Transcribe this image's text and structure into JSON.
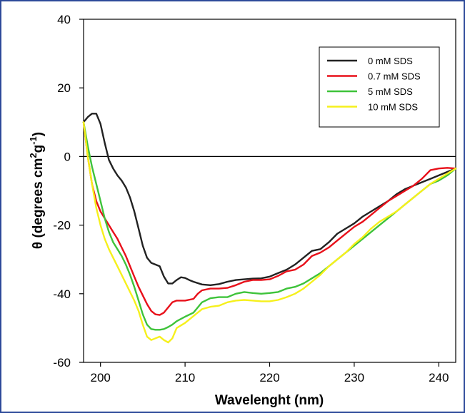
{
  "chart_data": {
    "type": "line",
    "title": "",
    "xlabel": "Wavelenght (nm)",
    "ylabel_parts": {
      "prefix": "θ (degrees cm",
      "sup1": "2",
      "mid": "g",
      "sup2": "-1",
      "suffix": ")"
    },
    "xlim": [
      198,
      242
    ],
    "ylim": [
      -60,
      40
    ],
    "xticks": [
      200,
      210,
      220,
      230,
      240
    ],
    "yticks": [
      -60,
      -40,
      -20,
      0,
      20,
      40
    ],
    "zero_line": true,
    "grid": false,
    "legend_position": "top-right",
    "series": [
      {
        "name": "0 mM SDS",
        "color": "#222222",
        "points": [
          [
            198,
            10
          ],
          [
            198.5,
            11.5
          ],
          [
            199,
            12.5
          ],
          [
            199.5,
            12.5
          ],
          [
            200,
            9.5
          ],
          [
            200.5,
            4
          ],
          [
            201,
            -1
          ],
          [
            201.5,
            -3.5
          ],
          [
            202,
            -5.5
          ],
          [
            202.5,
            -7
          ],
          [
            203,
            -9
          ],
          [
            203.5,
            -12
          ],
          [
            204,
            -16
          ],
          [
            204.5,
            -21
          ],
          [
            205,
            -26
          ],
          [
            205.5,
            -29.5
          ],
          [
            206,
            -31
          ],
          [
            206.5,
            -31.5
          ],
          [
            207,
            -32
          ],
          [
            207.5,
            -35
          ],
          [
            208,
            -37
          ],
          [
            208.5,
            -37
          ],
          [
            209,
            -36
          ],
          [
            209.5,
            -35.2
          ],
          [
            210,
            -35.4
          ],
          [
            210.5,
            -36
          ],
          [
            211,
            -36.5
          ],
          [
            212,
            -37.3
          ],
          [
            213,
            -37.5
          ],
          [
            214,
            -37.2
          ],
          [
            215,
            -36.5
          ],
          [
            216,
            -36
          ],
          [
            217,
            -35.8
          ],
          [
            218,
            -35.6
          ],
          [
            219,
            -35.5
          ],
          [
            220,
            -35
          ],
          [
            221,
            -34
          ],
          [
            222,
            -33
          ],
          [
            223,
            -31.5
          ],
          [
            224,
            -29.5
          ],
          [
            225,
            -27.5
          ],
          [
            226,
            -27
          ],
          [
            227,
            -25
          ],
          [
            228,
            -22.5
          ],
          [
            229,
            -21
          ],
          [
            230,
            -19.5
          ],
          [
            231,
            -17.5
          ],
          [
            232,
            -16
          ],
          [
            233,
            -14.5
          ],
          [
            234,
            -13
          ],
          [
            235,
            -11
          ],
          [
            236,
            -9.5
          ],
          [
            237,
            -8.5
          ],
          [
            238,
            -7.5
          ],
          [
            239,
            -6.5
          ],
          [
            240,
            -5.5
          ],
          [
            241,
            -4.5
          ],
          [
            242,
            -3.5
          ]
        ]
      },
      {
        "name": "0.7 mM SDS",
        "color": "#e8101a",
        "points": [
          [
            198,
            10
          ],
          [
            198.5,
            0
          ],
          [
            199,
            -8
          ],
          [
            199.5,
            -13
          ],
          [
            200,
            -16
          ],
          [
            200.5,
            -18
          ],
          [
            201,
            -20
          ],
          [
            201.5,
            -22
          ],
          [
            202,
            -24
          ],
          [
            202.5,
            -26.5
          ],
          [
            203,
            -29
          ],
          [
            203.5,
            -32
          ],
          [
            204,
            -35
          ],
          [
            204.5,
            -38
          ],
          [
            205,
            -40.5
          ],
          [
            205.5,
            -43
          ],
          [
            206,
            -45
          ],
          [
            206.5,
            -46
          ],
          [
            207,
            -46.2
          ],
          [
            207.5,
            -45.5
          ],
          [
            208,
            -44
          ],
          [
            208.5,
            -42.5
          ],
          [
            209,
            -42
          ],
          [
            210,
            -42
          ],
          [
            211,
            -41.5
          ],
          [
            211.5,
            -40
          ],
          [
            212,
            -39
          ],
          [
            213,
            -38.5
          ],
          [
            214,
            -38.5
          ],
          [
            215,
            -38.3
          ],
          [
            216,
            -37.5
          ],
          [
            217,
            -36.5
          ],
          [
            218,
            -36
          ],
          [
            219,
            -36
          ],
          [
            220,
            -35.8
          ],
          [
            221,
            -34.8
          ],
          [
            222,
            -33.5
          ],
          [
            223,
            -33
          ],
          [
            224,
            -31.5
          ],
          [
            225,
            -29
          ],
          [
            226,
            -28
          ],
          [
            227,
            -26.5
          ],
          [
            228,
            -24.5
          ],
          [
            229,
            -22.5
          ],
          [
            230,
            -20.5
          ],
          [
            231,
            -19
          ],
          [
            232,
            -17
          ],
          [
            233,
            -15
          ],
          [
            234,
            -13
          ],
          [
            235,
            -11.5
          ],
          [
            236,
            -10
          ],
          [
            237,
            -8.5
          ],
          [
            238,
            -6.5
          ],
          [
            239,
            -4
          ],
          [
            240,
            -3.5
          ],
          [
            241,
            -3.3
          ],
          [
            242,
            -3.5
          ]
        ]
      },
      {
        "name": "5 mM SDS",
        "color": "#3ec33a",
        "points": [
          [
            198,
            10
          ],
          [
            198.5,
            3
          ],
          [
            199,
            -3
          ],
          [
            199.5,
            -8
          ],
          [
            200,
            -13
          ],
          [
            200.5,
            -18
          ],
          [
            201,
            -22
          ],
          [
            201.5,
            -25
          ],
          [
            202,
            -27
          ],
          [
            202.5,
            -29
          ],
          [
            203,
            -31.5
          ],
          [
            203.5,
            -34.5
          ],
          [
            204,
            -38
          ],
          [
            204.5,
            -42
          ],
          [
            205,
            -46
          ],
          [
            205.5,
            -49
          ],
          [
            206,
            -50.3
          ],
          [
            206.5,
            -50.5
          ],
          [
            207,
            -50.5
          ],
          [
            207.5,
            -50.3
          ],
          [
            208,
            -49.7
          ],
          [
            208.5,
            -49
          ],
          [
            209,
            -48
          ],
          [
            210,
            -46.7
          ],
          [
            211,
            -45.5
          ],
          [
            211.5,
            -44
          ],
          [
            212,
            -42.5
          ],
          [
            213,
            -41.3
          ],
          [
            214,
            -41
          ],
          [
            215,
            -41
          ],
          [
            216,
            -40
          ],
          [
            217,
            -39.5
          ],
          [
            218,
            -39.8
          ],
          [
            219,
            -40
          ],
          [
            220,
            -39.8
          ],
          [
            221,
            -39.5
          ],
          [
            222,
            -38.5
          ],
          [
            223,
            -38
          ],
          [
            224,
            -37
          ],
          [
            225,
            -35.5
          ],
          [
            226,
            -34
          ],
          [
            227,
            -32
          ],
          [
            228,
            -30
          ],
          [
            229,
            -28
          ],
          [
            230,
            -26
          ],
          [
            231,
            -24
          ],
          [
            232,
            -22
          ],
          [
            233,
            -20
          ],
          [
            234,
            -18
          ],
          [
            235,
            -16
          ],
          [
            236,
            -14
          ],
          [
            237,
            -12
          ],
          [
            238,
            -10
          ],
          [
            239,
            -8
          ],
          [
            240,
            -7
          ],
          [
            241,
            -5.5
          ],
          [
            242,
            -3.5
          ]
        ]
      },
      {
        "name": "10 mM SDS",
        "color": "#f6f01c",
        "points": [
          [
            198,
            10
          ],
          [
            198.5,
            0
          ],
          [
            199,
            -8
          ],
          [
            199.5,
            -15
          ],
          [
            200,
            -20
          ],
          [
            200.5,
            -24
          ],
          [
            201,
            -27
          ],
          [
            201.5,
            -29.5
          ],
          [
            202,
            -32
          ],
          [
            202.5,
            -34.5
          ],
          [
            203,
            -37
          ],
          [
            203.5,
            -39.5
          ],
          [
            204,
            -42
          ],
          [
            204.5,
            -45
          ],
          [
            205,
            -49
          ],
          [
            205.5,
            -52.5
          ],
          [
            206,
            -53.5
          ],
          [
            206.5,
            -53
          ],
          [
            207,
            -52.5
          ],
          [
            207.5,
            -53.5
          ],
          [
            208,
            -54.2
          ],
          [
            208.5,
            -53
          ],
          [
            209,
            -50
          ],
          [
            210,
            -48.5
          ],
          [
            211,
            -46.5
          ],
          [
            212,
            -44.5
          ],
          [
            213,
            -43.8
          ],
          [
            214,
            -43.5
          ],
          [
            215,
            -42.5
          ],
          [
            216,
            -42
          ],
          [
            217,
            -41.8
          ],
          [
            218,
            -42
          ],
          [
            219,
            -42.2
          ],
          [
            220,
            -42.2
          ],
          [
            221,
            -41.8
          ],
          [
            222,
            -41
          ],
          [
            223,
            -40
          ],
          [
            224,
            -38.5
          ],
          [
            225,
            -36.5
          ],
          [
            226,
            -34.5
          ],
          [
            227,
            -32
          ],
          [
            228,
            -30
          ],
          [
            229,
            -28
          ],
          [
            230,
            -25.5
          ],
          [
            231,
            -23.5
          ],
          [
            232,
            -21
          ],
          [
            233,
            -19
          ],
          [
            234,
            -17.5
          ],
          [
            235,
            -16
          ],
          [
            236,
            -14
          ],
          [
            237,
            -12
          ],
          [
            238,
            -10
          ],
          [
            239,
            -8
          ],
          [
            240,
            -6.5
          ],
          [
            241,
            -5
          ],
          [
            242,
            -3.5
          ]
        ]
      }
    ]
  }
}
